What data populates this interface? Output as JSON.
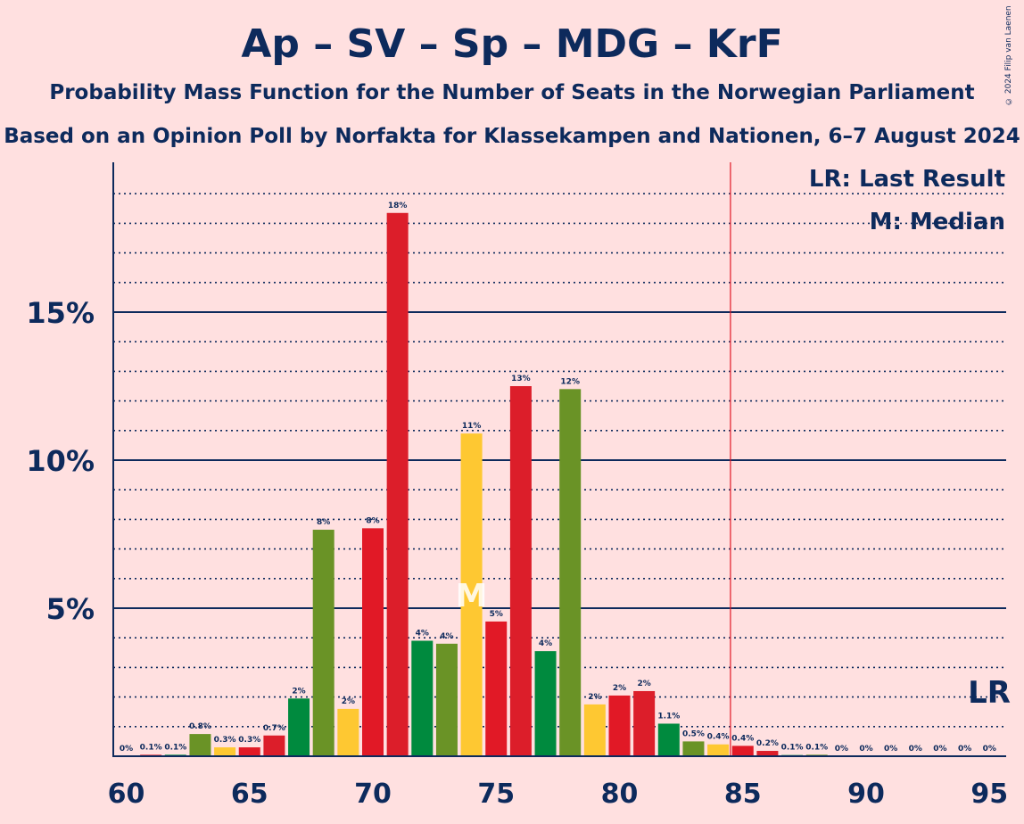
{
  "header": {
    "title": "Ap – SV – Sp – MDG – KrF",
    "subtitle1": "Probability Mass Function for the Number of Seats in the Norwegian Parliament",
    "subtitle2": "Based on an Opinion Poll by Norfakta for Klassekampen and Nationen, 6–7 August 2024",
    "copyright": "© 2024 Filip van Laenen"
  },
  "legend": {
    "last_result": "LR: Last Result",
    "median": "M: Median",
    "lr_marker": "LR",
    "median_marker": "M"
  },
  "colors": {
    "background": "#ffe0e0",
    "text": "#0d2a5c",
    "Ap": "#e11926",
    "SV": "#dc1e2a",
    "Sp": "#008a3e",
    "MDG": "#6a9326",
    "KrF": "#fec832",
    "last_result_line": "#e11926"
  },
  "chart_data": {
    "type": "bar",
    "title": "Ap – SV – Sp – MDG – KrF",
    "xlim": [
      60,
      95
    ],
    "ylim": [
      0,
      19.4
    ],
    "y_ticks": [
      {
        "value": 5,
        "label": "5%"
      },
      {
        "value": 10,
        "label": "10%"
      },
      {
        "value": 15,
        "label": "15%"
      }
    ],
    "x_ticks": [
      60,
      65,
      70,
      75,
      80,
      85,
      90,
      95
    ],
    "last_result": 85,
    "median": 74,
    "bars": [
      {
        "seats": 60,
        "value": 0,
        "label": "0%",
        "color": "#e11926"
      },
      {
        "seats": 61,
        "value": 0.05,
        "label": "0.1%",
        "color": "#dc1e2a"
      },
      {
        "seats": 62,
        "value": 0.05,
        "label": "0.1%",
        "color": "#008a3e"
      },
      {
        "seats": 63,
        "value": 0.75,
        "label": "0.8%",
        "color": "#6a9326"
      },
      {
        "seats": 64,
        "value": 0.3,
        "label": "0.3%",
        "color": "#fec832"
      },
      {
        "seats": 65,
        "value": 0.3,
        "label": "0.3%",
        "color": "#e11926"
      },
      {
        "seats": 66,
        "value": 0.7,
        "label": "0.7%",
        "color": "#dc1e2a"
      },
      {
        "seats": 67,
        "value": 1.95,
        "label": "2%",
        "color": "#008a3e"
      },
      {
        "seats": 68,
        "value": 7.65,
        "label": "8%",
        "color": "#6a9326"
      },
      {
        "seats": 69,
        "value": 1.6,
        "label": "2%",
        "color": "#fec832"
      },
      {
        "seats": 70,
        "value": 7.7,
        "label": "8%",
        "color": "#e11926"
      },
      {
        "seats": 71,
        "value": 18.35,
        "label": "18%",
        "color": "#dc1e2a"
      },
      {
        "seats": 72,
        "value": 3.9,
        "label": "4%",
        "color": "#008a3e"
      },
      {
        "seats": 73,
        "value": 3.8,
        "label": "4%",
        "color": "#6a9326"
      },
      {
        "seats": 74,
        "value": 10.9,
        "label": "11%",
        "color": "#fec832"
      },
      {
        "seats": 75,
        "value": 4.55,
        "label": "5%",
        "color": "#e11926"
      },
      {
        "seats": 76,
        "value": 12.5,
        "label": "13%",
        "color": "#dc1e2a"
      },
      {
        "seats": 77,
        "value": 3.55,
        "label": "4%",
        "color": "#008a3e"
      },
      {
        "seats": 78,
        "value": 12.4,
        "label": "12%",
        "color": "#6a9326"
      },
      {
        "seats": 79,
        "value": 1.75,
        "label": "2%",
        "color": "#fec832"
      },
      {
        "seats": 80,
        "value": 2.05,
        "label": "2%",
        "color": "#e11926"
      },
      {
        "seats": 81,
        "value": 2.2,
        "label": "2%",
        "color": "#dc1e2a"
      },
      {
        "seats": 82,
        "value": 1.1,
        "label": "1.1%",
        "color": "#008a3e"
      },
      {
        "seats": 83,
        "value": 0.5,
        "label": "0.5%",
        "color": "#6a9326"
      },
      {
        "seats": 84,
        "value": 0.4,
        "label": "0.4%",
        "color": "#fec832"
      },
      {
        "seats": 85,
        "value": 0.35,
        "label": "0.4%",
        "color": "#e11926"
      },
      {
        "seats": 86,
        "value": 0.18,
        "label": "0.2%",
        "color": "#dc1e2a"
      },
      {
        "seats": 87,
        "value": 0.04,
        "label": "0.1%",
        "color": "#008a3e"
      },
      {
        "seats": 88,
        "value": 0.05,
        "label": "0.1%",
        "color": "#6a9326"
      },
      {
        "seats": 89,
        "value": 0,
        "label": "0%",
        "color": "#fec832"
      },
      {
        "seats": 90,
        "value": 0,
        "label": "0%",
        "color": "#e11926"
      },
      {
        "seats": 91,
        "value": 0,
        "label": "0%",
        "color": "#dc1e2a"
      },
      {
        "seats": 92,
        "value": 0,
        "label": "0%",
        "color": "#008a3e"
      },
      {
        "seats": 93,
        "value": 0,
        "label": "0%",
        "color": "#6a9326"
      },
      {
        "seats": 94,
        "value": 0,
        "label": "0%",
        "color": "#fec832"
      },
      {
        "seats": 95,
        "value": 0,
        "label": "0%",
        "color": "#e11926"
      }
    ]
  }
}
